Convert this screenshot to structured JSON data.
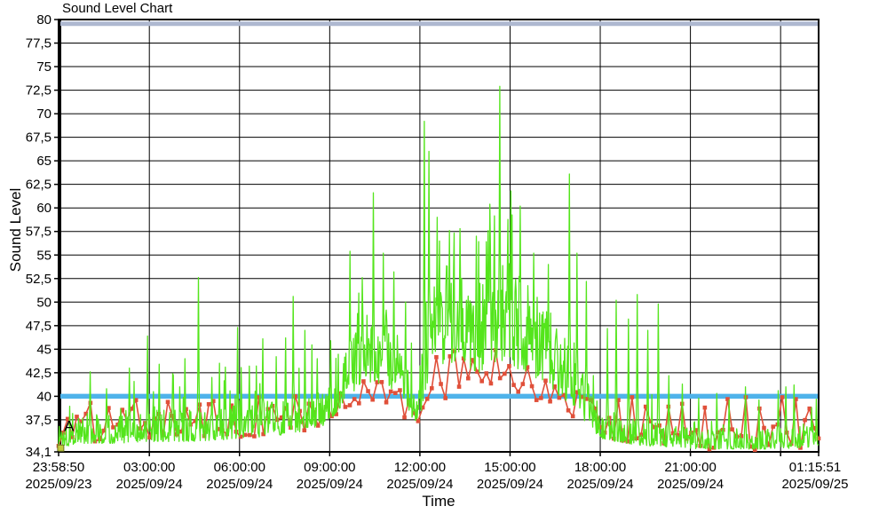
{
  "window": {
    "title": "Sound Level Chart"
  },
  "chart_data": {
    "type": "line",
    "title": "Sound Level Chart",
    "xlabel": "Time",
    "ylabel": "Sound Level",
    "ylim": [
      34.1,
      80
    ],
    "grid": true,
    "legend": "none",
    "background": "#ffffff",
    "grid_color": "#000000",
    "y_ticks": [
      {
        "value": 80,
        "label": "80"
      },
      {
        "value": 77.5,
        "label": "77,5"
      },
      {
        "value": 75,
        "label": "75"
      },
      {
        "value": 72.5,
        "label": "72,5"
      },
      {
        "value": 70,
        "label": "70"
      },
      {
        "value": 67.5,
        "label": "67,5"
      },
      {
        "value": 65,
        "label": "65"
      },
      {
        "value": 62.5,
        "label": "62,5"
      },
      {
        "value": 60,
        "label": "60"
      },
      {
        "value": 57.5,
        "label": "57,5"
      },
      {
        "value": 55,
        "label": "55"
      },
      {
        "value": 52.5,
        "label": "52,5"
      },
      {
        "value": 50,
        "label": "50"
      },
      {
        "value": 47.5,
        "label": "47,5"
      },
      {
        "value": 45,
        "label": "45"
      },
      {
        "value": 42.5,
        "label": "42,5"
      },
      {
        "value": 40,
        "label": "40"
      },
      {
        "value": 37.5,
        "label": "37,5"
      },
      {
        "value": 34.1,
        "label": "34,1"
      }
    ],
    "x_span_hours": 25.284,
    "x_ticks": [
      {
        "hours": 0,
        "time": "23:58:50",
        "date": "2025/09/23"
      },
      {
        "hours": 3.019,
        "time": "03:00:00",
        "date": "2025/09/24"
      },
      {
        "hours": 6.019,
        "time": "06:00:00",
        "date": "2025/09/24"
      },
      {
        "hours": 9.019,
        "time": "09:00:00",
        "date": "2025/09/24"
      },
      {
        "hours": 12.019,
        "time": "12:00:00",
        "date": "2025/09/24"
      },
      {
        "hours": 15.019,
        "time": "15:00:00",
        "date": "2025/09/24"
      },
      {
        "hours": 18.019,
        "time": "18:00:00",
        "date": "2025/09/24"
      },
      {
        "hours": 21.019,
        "time": "21:00:00",
        "date": "2025/09/24"
      },
      {
        "hours": 25.284,
        "time": "01:15:51",
        "date": "2025/09/25"
      }
    ],
    "x_grid_hours": [
      3.019,
      6.019,
      9.019,
      12.019,
      15.019,
      18.019,
      21.019,
      24.019
    ],
    "thresholds": [
      {
        "name": "upper-alarm-band-80",
        "value": 79.55,
        "color": "#aeb8d0",
        "width": 5
      },
      {
        "name": "limit-line-40",
        "value": 40,
        "color": "#4fb3ea",
        "width": 5.5
      }
    ],
    "annotation": {
      "label": "A",
      "hours": 0.18,
      "value": 36.9
    },
    "cursor_marker": {
      "hours": 0.07,
      "value": 34.5,
      "color": "#c2cb3d",
      "edge": "#6b7426"
    },
    "series": [
      {
        "id": "orange-markers",
        "color": "#e0503a",
        "style": "line-with-square-markers",
        "samples": 168,
        "power": 1.45,
        "spike_chance": 0.0,
        "envelope": [
          [
            0,
            34.2,
            36.8
          ],
          [
            0.7,
            35,
            38.6
          ],
          [
            1.5,
            35.3,
            39
          ],
          [
            3,
            35.3,
            39.2
          ],
          [
            5,
            35.5,
            39.3
          ],
          [
            7,
            35.8,
            39.6
          ],
          [
            8.5,
            36.5,
            39.8
          ],
          [
            9.2,
            38,
            40.5
          ],
          [
            9.6,
            39,
            41.5
          ],
          [
            10.5,
            39.5,
            42
          ],
          [
            11.3,
            38.5,
            41
          ],
          [
            11.8,
            36,
            39.3
          ],
          [
            12.1,
            37.5,
            40
          ],
          [
            12.4,
            40.5,
            44
          ],
          [
            13.5,
            41,
            45.5
          ],
          [
            14.5,
            41,
            45.5
          ],
          [
            15.4,
            40,
            43.5
          ],
          [
            16.2,
            39.5,
            42.5
          ],
          [
            17,
            38,
            41
          ],
          [
            17.6,
            36.8,
            39.8
          ],
          [
            18.3,
            35.3,
            38.6
          ],
          [
            19.2,
            35,
            38.2
          ],
          [
            20.2,
            34.8,
            37.6
          ],
          [
            21.1,
            34.4,
            37
          ],
          [
            22.2,
            34.3,
            36.9
          ],
          [
            23.3,
            34.3,
            37
          ],
          [
            24.3,
            34.4,
            37.1
          ],
          [
            24.9,
            34.6,
            37.6
          ],
          [
            25.284,
            34.5,
            37.2
          ]
        ],
        "marks": [
          [
            0.35,
            37.6
          ],
          [
            1.1,
            39.3
          ],
          [
            2.6,
            39.6
          ],
          [
            3.6,
            39.4
          ],
          [
            5.2,
            39.5
          ],
          [
            6.6,
            39.9
          ],
          [
            7.9,
            40
          ],
          [
            11.65,
            39.6
          ],
          [
            12.9,
            39.8
          ],
          [
            15.9,
            39.6
          ],
          [
            18.65,
            39.6
          ],
          [
            19.05,
            39.9
          ],
          [
            19.5,
            38.9
          ],
          [
            20.35,
            38.9
          ],
          [
            20.75,
            39.2
          ],
          [
            21.55,
            38.8
          ],
          [
            22.25,
            39.7
          ],
          [
            22.85,
            39.9
          ],
          [
            23.25,
            38.7
          ],
          [
            24.1,
            39.9
          ],
          [
            24.5,
            39.7
          ],
          [
            25.05,
            38.7
          ]
        ]
      },
      {
        "id": "green-line",
        "color": "#54e51c",
        "style": "line",
        "samples": 1300,
        "power": 1.7,
        "spike_chance": 0.03,
        "spike_extra": [
          [
            0,
            4.5
          ],
          [
            9,
            5.5
          ],
          [
            12,
            5.5
          ],
          [
            17,
            6
          ],
          [
            17.6,
            9
          ],
          [
            19.9,
            9
          ],
          [
            20.4,
            3.5
          ],
          [
            25.284,
            3
          ]
        ],
        "envelope": [
          [
            0,
            34.4,
            37.8
          ],
          [
            0.6,
            35,
            38.6
          ],
          [
            2,
            35,
            38.8
          ],
          [
            3,
            35.2,
            39
          ],
          [
            4.6,
            35.2,
            38.6
          ],
          [
            6,
            35.5,
            39.2
          ],
          [
            7.2,
            35.8,
            39.6
          ],
          [
            8.3,
            36.2,
            40
          ],
          [
            8.9,
            37,
            40.8
          ],
          [
            9.3,
            38.5,
            43.5
          ],
          [
            9.8,
            40.5,
            47
          ],
          [
            10.4,
            41.5,
            50
          ],
          [
            11,
            41,
            49
          ],
          [
            11.4,
            39.5,
            45.5
          ],
          [
            11.8,
            37.2,
            41
          ],
          [
            12.05,
            38,
            44
          ],
          [
            12.3,
            42,
            52
          ],
          [
            12.8,
            43.5,
            54
          ],
          [
            13.5,
            43,
            54.5
          ],
          [
            14.1,
            42.5,
            53
          ],
          [
            14.7,
            43.5,
            56
          ],
          [
            15.2,
            43,
            54
          ],
          [
            15.8,
            42,
            51
          ],
          [
            16.4,
            40.5,
            49
          ],
          [
            16.9,
            39.5,
            47.5
          ],
          [
            17.3,
            38,
            45
          ],
          [
            17.7,
            36.5,
            41.5
          ],
          [
            18.1,
            35.5,
            39
          ],
          [
            18.8,
            35,
            38
          ],
          [
            19.6,
            34.7,
            37.4
          ],
          [
            20.6,
            34.6,
            36.9
          ],
          [
            21.4,
            34.4,
            36.5
          ],
          [
            22.6,
            34.4,
            36.6
          ],
          [
            23.6,
            34.4,
            36.9
          ],
          [
            24.6,
            34.5,
            37.1
          ],
          [
            25.284,
            34.7,
            37.6
          ]
        ],
        "peaks": [
          [
            1.05,
            42.6
          ],
          [
            1.6,
            40.8
          ],
          [
            2.35,
            43
          ],
          [
            2.95,
            46.4
          ],
          [
            3.35,
            43.4
          ],
          [
            3.8,
            42.4
          ],
          [
            4.2,
            44
          ],
          [
            4.66,
            52.6
          ],
          [
            5.1,
            42
          ],
          [
            5.55,
            43.1
          ],
          [
            5.95,
            47.3
          ],
          [
            6.35,
            43.2
          ],
          [
            6.8,
            46.1
          ],
          [
            7.25,
            44.2
          ],
          [
            7.55,
            46.2
          ],
          [
            7.8,
            50.6
          ],
          [
            8.2,
            47
          ],
          [
            8.6,
            44
          ],
          [
            9.05,
            45.9
          ],
          [
            9.7,
            55.4
          ],
          [
            10.1,
            52.6
          ],
          [
            10.47,
            61.6
          ],
          [
            10.8,
            55.2
          ],
          [
            11.15,
            53.2
          ],
          [
            11.55,
            50
          ],
          [
            12.17,
            69.2
          ],
          [
            12.33,
            66
          ],
          [
            12.6,
            59
          ],
          [
            13,
            57.6
          ],
          [
            13.35,
            57.8
          ],
          [
            13.9,
            57
          ],
          [
            14.35,
            60.4
          ],
          [
            14.68,
            72.9
          ],
          [
            15.05,
            61.8
          ],
          [
            15.35,
            60.2
          ],
          [
            15.8,
            55.2
          ],
          [
            16.3,
            54
          ],
          [
            17,
            63.6
          ],
          [
            17.25,
            55.2
          ],
          [
            17.55,
            52.2
          ],
          [
            18.25,
            47.2
          ],
          [
            18.55,
            50.2
          ],
          [
            18.95,
            48.2
          ],
          [
            19.25,
            50.8
          ],
          [
            19.6,
            47
          ],
          [
            19.95,
            49.8
          ],
          [
            20.3,
            42.2
          ],
          [
            20.75,
            41.3
          ],
          [
            21.3,
            39.8
          ],
          [
            21.9,
            40.3
          ],
          [
            22.3,
            39.6
          ],
          [
            22.85,
            41
          ],
          [
            23.3,
            39.6
          ],
          [
            23.95,
            40.6
          ],
          [
            24.2,
            41
          ],
          [
            24.47,
            41.2
          ],
          [
            25.05,
            38.8
          ]
        ]
      }
    ]
  }
}
